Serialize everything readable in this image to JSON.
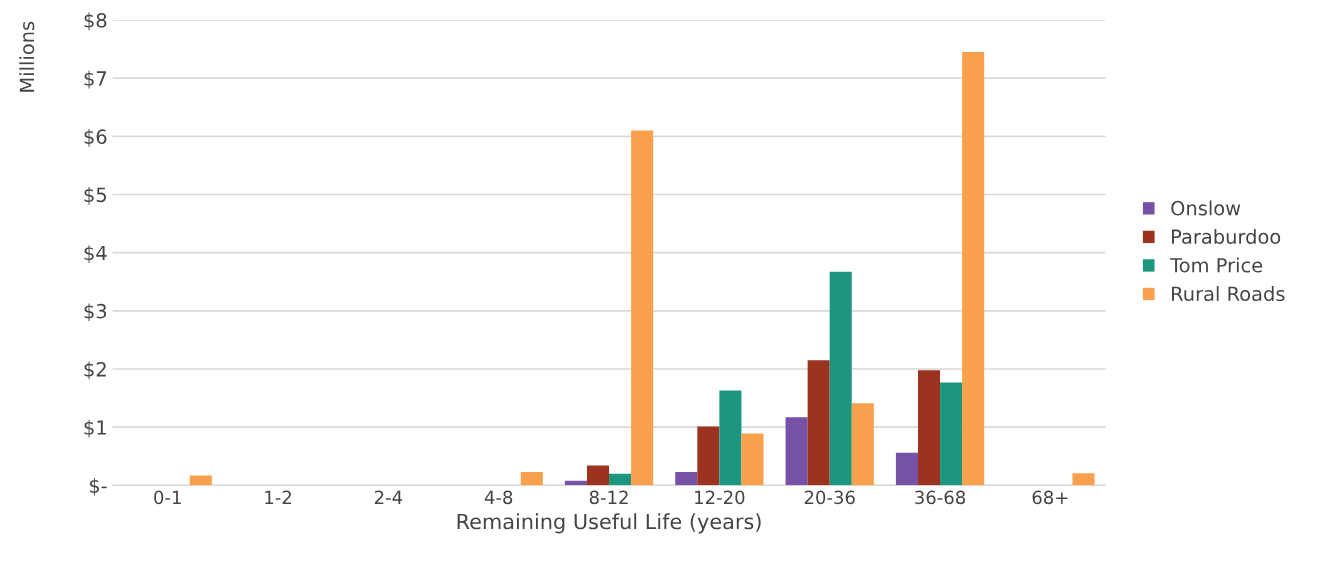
{
  "chart_data": {
    "type": "bar",
    "xlabel": "Remaining Useful Life (years)",
    "ylabel": "Millions",
    "categories": [
      "0-1",
      "1-2",
      "2-4",
      "4-8",
      "8-12",
      "12-20",
      "20-36",
      "36-68",
      "68+"
    ],
    "series": [
      {
        "name": "Onslow",
        "color": "#7651a6",
        "values": [
          0,
          0,
          0,
          0,
          0.08,
          0.23,
          1.17,
          0.56,
          0
        ]
      },
      {
        "name": "Paraburdoo",
        "color": "#9c3220",
        "values": [
          0,
          0,
          0,
          0,
          0.34,
          1.01,
          2.15,
          1.98,
          0
        ]
      },
      {
        "name": "Tom Price",
        "color": "#1d9680",
        "values": [
          0,
          0,
          0,
          0,
          0.2,
          1.63,
          3.67,
          1.77,
          0
        ]
      },
      {
        "name": "Rural Roads",
        "color": "#f8a04b",
        "values": [
          0.17,
          0,
          0,
          0.23,
          6.1,
          0.89,
          1.41,
          7.45,
          0.21
        ]
      }
    ],
    "ylim": [
      0,
      8
    ],
    "yticks": [
      {
        "value": 0,
        "label": "$-"
      },
      {
        "value": 1,
        "label": "$1"
      },
      {
        "value": 2,
        "label": "$2"
      },
      {
        "value": 3,
        "label": "$3"
      },
      {
        "value": 4,
        "label": "$4"
      },
      {
        "value": 5,
        "label": "$5"
      },
      {
        "value": 6,
        "label": "$6"
      },
      {
        "value": 7,
        "label": "$7"
      },
      {
        "value": 8,
        "label": "$8"
      }
    ],
    "grid": "y",
    "legend": "right"
  }
}
